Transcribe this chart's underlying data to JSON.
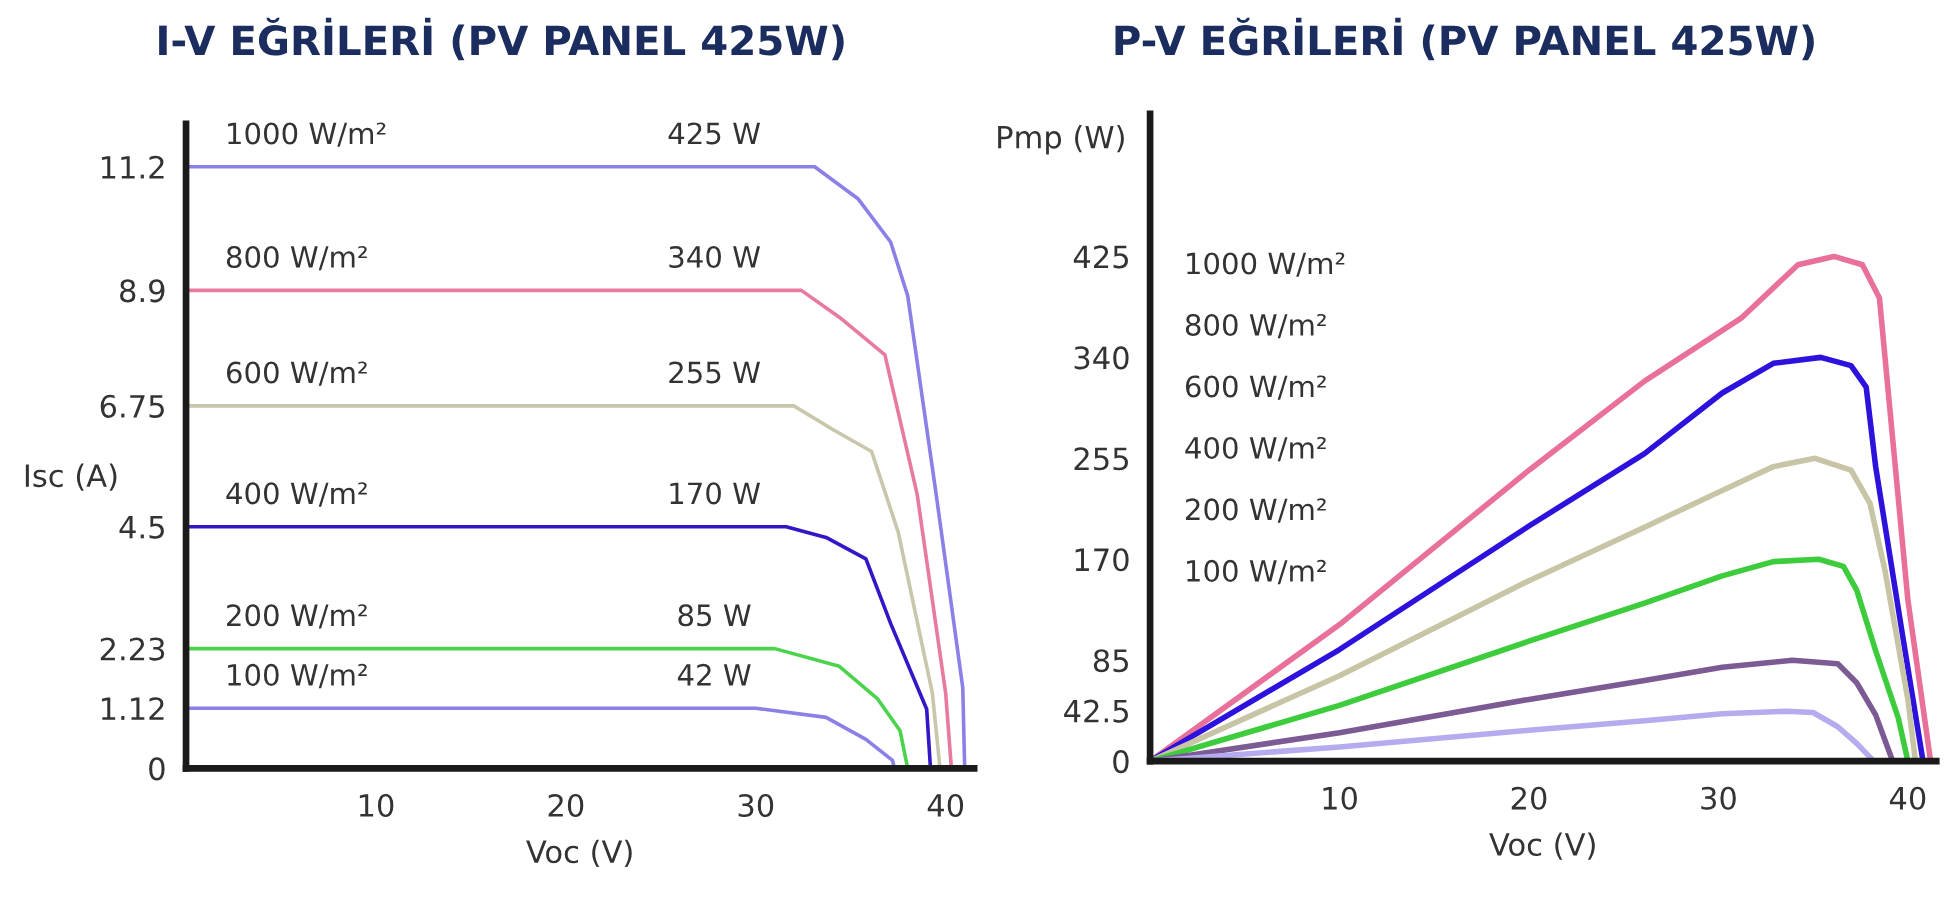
{
  "chart_data": [
    {
      "type": "line",
      "title": "I-V EĞRİLERİ (PV PANEL 425W)",
      "xlabel": "Voc (V)",
      "ylabel": "Isc (A)",
      "xlim": [
        0,
        41.5
      ],
      "xticks": [
        10,
        20,
        30,
        40
      ],
      "ylim": [
        0,
        12
      ],
      "yticks": [
        0,
        1.12,
        2.23,
        4.5,
        6.75,
        8.9,
        11.2
      ],
      "grid": false,
      "legend": false,
      "marker": "none",
      "line_style": "solid",
      "series": [
        {
          "name": "1000 W/m²",
          "color": "#8b7fe8",
          "x": [
            0,
            33.1,
            35.4,
            37.1,
            38.0,
            39.5,
            40.9,
            41.0
          ],
          "values": [
            11.2,
            11.2,
            10.6,
            9.8,
            8.8,
            5.1,
            1.5,
            0
          ]
        },
        {
          "name": "800 W/m²",
          "color": "#e87aa0",
          "x": [
            0,
            32.4,
            34.4,
            36.8,
            38.5,
            40.0,
            40.3
          ],
          "values": [
            8.9,
            8.9,
            8.4,
            7.7,
            5.1,
            1.4,
            0
          ]
        },
        {
          "name": "600 W/m²",
          "color": "#c9c6ac",
          "x": [
            0,
            32.0,
            34.1,
            36.1,
            37.5,
            39.3,
            39.7
          ],
          "values": [
            6.75,
            6.75,
            6.3,
            5.9,
            4.4,
            1.4,
            0
          ]
        },
        {
          "name": "400 W/m²",
          "color": "#3516c6",
          "x": [
            0,
            31.6,
            33.7,
            35.8,
            37.1,
            39.0,
            39.2
          ],
          "values": [
            4.5,
            4.5,
            4.3,
            3.9,
            2.7,
            1.1,
            0
          ]
        },
        {
          "name": "200 W/m²",
          "color": "#4bd44b",
          "x": [
            0,
            31.0,
            34.4,
            36.4,
            37.6,
            38.0
          ],
          "values": [
            2.23,
            2.23,
            1.9,
            1.3,
            0.7,
            0
          ]
        },
        {
          "name": "100 W/m²",
          "color": "#8b7fe8",
          "x": [
            0,
            30.0,
            33.7,
            35.8,
            37.2,
            37.3
          ],
          "values": [
            1.12,
            1.12,
            0.95,
            0.54,
            0.15,
            0
          ]
        }
      ],
      "annotations": [
        {
          "text": "425 W",
          "y": 11.2
        },
        {
          "text": "340 W",
          "y": 8.9
        },
        {
          "text": "255 W",
          "y": 6.75
        },
        {
          "text": "170 W",
          "y": 4.5
        },
        {
          "text": "85 W",
          "y": 2.23
        },
        {
          "text": "42 W",
          "y": 1.12
        }
      ]
    },
    {
      "type": "line",
      "title": "P-V EĞRİLERİ (PV PANEL 425W)",
      "xlabel": "Voc (V)",
      "ylabel": "Pmp (W)",
      "xlim": [
        0,
        41.5
      ],
      "xticks": [
        10,
        20,
        30,
        40
      ],
      "ylim": [
        0,
        545
      ],
      "yticks": [
        0,
        42.5,
        85,
        170,
        255,
        340,
        425
      ],
      "grid": false,
      "legend": false,
      "marker": "none",
      "line_style": "solid",
      "series": [
        {
          "color": "#e8709a",
          "x": [
            0,
            10,
            20,
            26.1,
            31.2,
            34.2,
            36.1,
            37.6,
            38.5,
            39.0,
            40.0,
            41.2
          ],
          "values": [
            0,
            115,
            245,
            320,
            373,
            418,
            425,
            418,
            390,
            305,
            136,
            0
          ]
        },
        {
          "color": "#2c12dc",
          "x": [
            0,
            10,
            20,
            26.1,
            30.2,
            32.9,
            35.4,
            37.0,
            37.8,
            38.3,
            39.7,
            40.8
          ],
          "values": [
            0,
            94,
            198,
            259,
            310,
            335,
            340,
            333,
            315,
            248,
            108,
            0
          ]
        },
        {
          "color": "#c8c4a6",
          "x": [
            0,
            10,
            20,
            26.1,
            30.2,
            32.9,
            35.1,
            37.0,
            38.0,
            38.8,
            40.0,
            40.4
          ],
          "values": [
            0,
            72,
            152,
            197,
            228,
            248,
            255,
            245,
            217,
            160,
            52,
            0
          ]
        },
        {
          "color": "#3ccc3c",
          "x": [
            0,
            10,
            20,
            26.1,
            30.2,
            32.9,
            35.3,
            36.6,
            37.3,
            38.3,
            39.5,
            40.0
          ],
          "values": [
            0,
            47,
            101,
            133,
            156,
            168,
            170,
            164,
            144,
            93,
            36,
            0
          ]
        },
        {
          "color": "#7c5b94",
          "x": [
            0,
            10,
            20,
            26.1,
            30.2,
            33.9,
            36.3,
            37.3,
            38.3,
            39.2
          ],
          "values": [
            0,
            24,
            52,
            68,
            79,
            85,
            82,
            66,
            39,
            0
          ]
        },
        {
          "color": "#b5acf0",
          "x": [
            0,
            10,
            20,
            26.1,
            30.2,
            33.6,
            35.0,
            36.3,
            37.3,
            38.2
          ],
          "values": [
            0,
            12,
            26,
            34,
            40,
            42,
            41,
            29,
            15,
            0
          ]
        }
      ],
      "annotations": [
        "1000 W/m²",
        "800 W/m²",
        "600 W/m²",
        "400 W/m²",
        "200 W/m²",
        "100 W/m²"
      ]
    }
  ]
}
